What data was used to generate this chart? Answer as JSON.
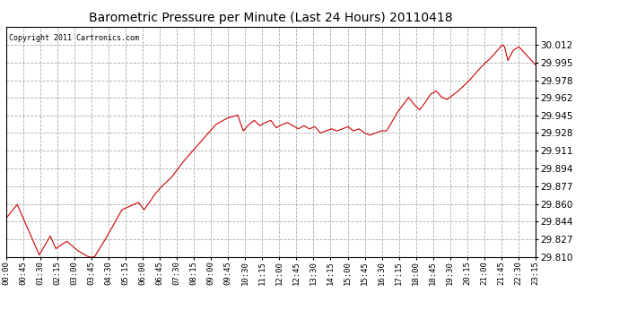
{
  "title": "Barometric Pressure per Minute (Last 24 Hours) 20110418",
  "copyright": "Copyright 2011 Cartronics.com",
  "line_color": "#cc0000",
  "bg_color": "#ffffff",
  "plot_bg_color": "#ffffff",
  "grid_color": "#aaaaaa",
  "grid_style": "--",
  "ylim": [
    29.81,
    30.029
  ],
  "yticks": [
    29.81,
    29.827,
    29.844,
    29.86,
    29.877,
    29.894,
    29.911,
    29.928,
    29.945,
    29.962,
    29.978,
    29.995,
    30.012
  ],
  "xtick_labels": [
    "00:00",
    "00:45",
    "01:30",
    "02:15",
    "03:00",
    "03:45",
    "04:30",
    "05:15",
    "06:00",
    "06:45",
    "07:30",
    "08:15",
    "09:00",
    "09:45",
    "10:30",
    "11:15",
    "12:00",
    "12:45",
    "13:30",
    "14:15",
    "15:00",
    "15:45",
    "16:30",
    "17:15",
    "18:00",
    "18:45",
    "19:30",
    "20:15",
    "21:00",
    "21:45",
    "22:30",
    "23:15"
  ]
}
